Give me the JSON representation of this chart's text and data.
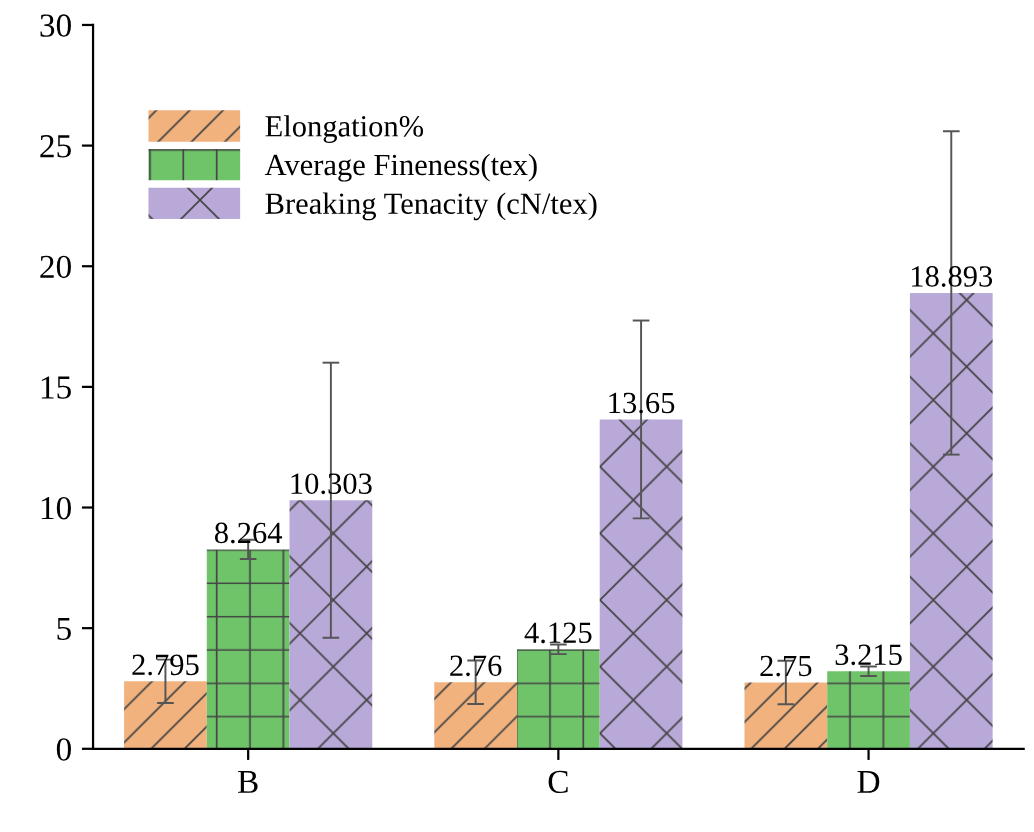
{
  "chart_data": {
    "type": "bar",
    "categories": [
      "B",
      "C",
      "D"
    ],
    "series": [
      {
        "name": "Elongation%",
        "color": "#f2b27e",
        "values": [
          2.795,
          2.76,
          2.75
        ],
        "errors": [
          0.9,
          0.9,
          0.9
        ]
      },
      {
        "name": "Average Fineness(tex)",
        "color": "#6fc46a",
        "values": [
          8.264,
          4.125,
          3.215
        ],
        "errors": [
          0.4,
          0.2,
          0.2
        ]
      },
      {
        "name": "Breaking Tenacity (cN/tex)",
        "color": "#b9a9d9",
        "values": [
          10.303,
          13.65,
          18.893
        ],
        "errors": [
          5.7,
          4.1,
          6.7
        ]
      }
    ],
    "ylim": [
      0,
      30
    ],
    "yticks": [
      0,
      5,
      10,
      15,
      20,
      25,
      30
    ],
    "grid": false,
    "legend": "top left",
    "data_labels": true
  }
}
